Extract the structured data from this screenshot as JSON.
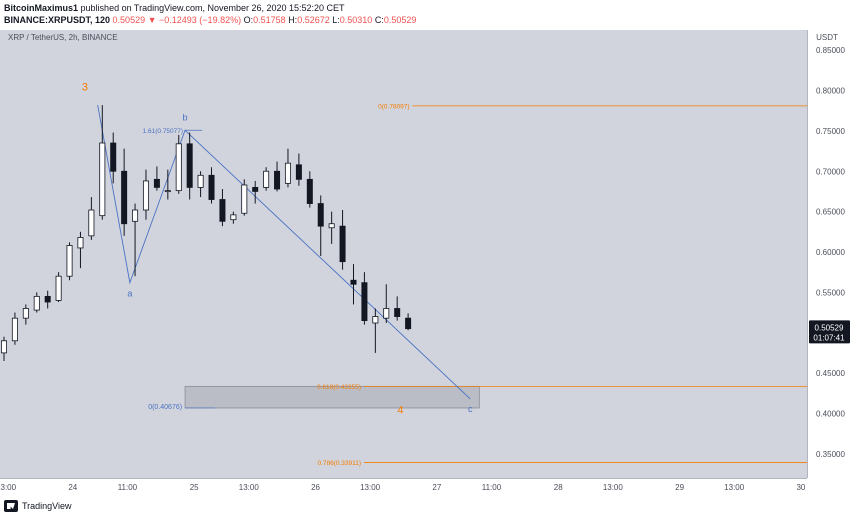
{
  "header": {
    "publisher": "BitcoinMaximus1",
    "published_text": "published on TradingView.com, November 26, 2020 15:52:20 CET",
    "symbol": "BINANCE:XRPUSDT, 120",
    "last": "0.50529",
    "change": "▼ −0.12493 (−19.82%)",
    "o_label": "O:",
    "o": "0.51758",
    "h_label": "H:",
    "h": "0.52672",
    "l_label": "L:",
    "l": "0.50310",
    "c_label": "C:",
    "c": "0.50529"
  },
  "chart_title": "XRP / TetherUS, 2h, BINANCE",
  "footer": {
    "logo_text": "TradingView"
  },
  "colors": {
    "plot_bg": "#d1d4dc",
    "axis_bg": "#ffffff",
    "up_body": "#ffffff",
    "down_body": "#131722",
    "fib": "#f57c00",
    "wave_blue": "#4a72c4",
    "wave_orange": "#f57c00",
    "box_fill": "#b2b5be",
    "price_tag_bg": "#131722"
  },
  "chart_data": {
    "type": "candlestick",
    "y_axis_label": "USDT",
    "ylim": [
      0.32,
      0.875
    ],
    "y_ticks": [
      "0.85000",
      "0.80000",
      "0.75000",
      "0.70000",
      "0.65000",
      "0.60000",
      "0.55000",
      "0.50000",
      "0.45000",
      "0.40000",
      "0.35000"
    ],
    "x_range": [
      0,
      133
    ],
    "x_ticks": [
      {
        "label": "13:00",
        "x": 1
      },
      {
        "label": "24",
        "x": 12
      },
      {
        "label": "11:00",
        "x": 21
      },
      {
        "label": "25",
        "x": 32
      },
      {
        "label": "13:00",
        "x": 41
      },
      {
        "label": "26",
        "x": 52
      },
      {
        "label": "13:00",
        "x": 61
      },
      {
        "label": "27",
        "x": 72
      },
      {
        "label": "11:00",
        "x": 81
      },
      {
        "label": "28",
        "x": 92
      },
      {
        "label": "13:00",
        "x": 101
      },
      {
        "label": "29",
        "x": 112
      },
      {
        "label": "13:00",
        "x": 121
      },
      {
        "label": "30",
        "x": 132
      }
    ],
    "candles": [
      {
        "x": 0,
        "o": 0.475,
        "h": 0.495,
        "l": 0.465,
        "c": 0.49
      },
      {
        "x": 1.8,
        "o": 0.49,
        "h": 0.525,
        "l": 0.485,
        "c": 0.518
      },
      {
        "x": 3.6,
        "o": 0.518,
        "h": 0.535,
        "l": 0.51,
        "c": 0.53
      },
      {
        "x": 5.4,
        "o": 0.528,
        "h": 0.55,
        "l": 0.525,
        "c": 0.545
      },
      {
        "x": 7.2,
        "o": 0.545,
        "h": 0.552,
        "l": 0.53,
        "c": 0.538
      },
      {
        "x": 9.0,
        "o": 0.54,
        "h": 0.575,
        "l": 0.538,
        "c": 0.57
      },
      {
        "x": 10.8,
        "o": 0.57,
        "h": 0.612,
        "l": 0.565,
        "c": 0.608
      },
      {
        "x": 12.6,
        "o": 0.605,
        "h": 0.625,
        "l": 0.58,
        "c": 0.618
      },
      {
        "x": 14.4,
        "o": 0.62,
        "h": 0.668,
        "l": 0.615,
        "c": 0.652
      },
      {
        "x": 16.2,
        "o": 0.645,
        "h": 0.782,
        "l": 0.64,
        "c": 0.735
      },
      {
        "x": 18.0,
        "o": 0.735,
        "h": 0.748,
        "l": 0.685,
        "c": 0.7
      },
      {
        "x": 19.8,
        "o": 0.7,
        "h": 0.728,
        "l": 0.62,
        "c": 0.635
      },
      {
        "x": 21.6,
        "o": 0.638,
        "h": 0.66,
        "l": 0.57,
        "c": 0.652
      },
      {
        "x": 23.4,
        "o": 0.652,
        "h": 0.702,
        "l": 0.64,
        "c": 0.688
      },
      {
        "x": 25.2,
        "o": 0.69,
        "h": 0.706,
        "l": 0.676,
        "c": 0.68
      },
      {
        "x": 27.0,
        "o": 0.675,
        "h": 0.702,
        "l": 0.665,
        "c": 0.676
      },
      {
        "x": 28.8,
        "o": 0.676,
        "h": 0.745,
        "l": 0.672,
        "c": 0.734
      },
      {
        "x": 30.6,
        "o": 0.734,
        "h": 0.748,
        "l": 0.665,
        "c": 0.68
      },
      {
        "x": 32.4,
        "o": 0.68,
        "h": 0.7,
        "l": 0.668,
        "c": 0.695
      },
      {
        "x": 34.2,
        "o": 0.695,
        "h": 0.705,
        "l": 0.66,
        "c": 0.665
      },
      {
        "x": 36.0,
        "o": 0.665,
        "h": 0.678,
        "l": 0.632,
        "c": 0.638
      },
      {
        "x": 37.8,
        "o": 0.64,
        "h": 0.65,
        "l": 0.635,
        "c": 0.646
      },
      {
        "x": 39.6,
        "o": 0.648,
        "h": 0.69,
        "l": 0.645,
        "c": 0.683
      },
      {
        "x": 41.4,
        "o": 0.68,
        "h": 0.688,
        "l": 0.66,
        "c": 0.675
      },
      {
        "x": 43.2,
        "o": 0.68,
        "h": 0.705,
        "l": 0.676,
        "c": 0.7
      },
      {
        "x": 45.0,
        "o": 0.7,
        "h": 0.712,
        "l": 0.675,
        "c": 0.678
      },
      {
        "x": 46.8,
        "o": 0.685,
        "h": 0.728,
        "l": 0.68,
        "c": 0.71
      },
      {
        "x": 48.6,
        "o": 0.708,
        "h": 0.722,
        "l": 0.682,
        "c": 0.69
      },
      {
        "x": 50.4,
        "o": 0.69,
        "h": 0.7,
        "l": 0.655,
        "c": 0.66
      },
      {
        "x": 52.2,
        "o": 0.66,
        "h": 0.67,
        "l": 0.595,
        "c": 0.632
      },
      {
        "x": 54.0,
        "o": 0.63,
        "h": 0.65,
        "l": 0.61,
        "c": 0.635
      },
      {
        "x": 55.8,
        "o": 0.632,
        "h": 0.652,
        "l": 0.578,
        "c": 0.588
      },
      {
        "x": 57.6,
        "o": 0.565,
        "h": 0.585,
        "l": 0.535,
        "c": 0.56
      },
      {
        "x": 59.4,
        "o": 0.562,
        "h": 0.575,
        "l": 0.51,
        "c": 0.515
      },
      {
        "x": 61.2,
        "o": 0.512,
        "h": 0.53,
        "l": 0.475,
        "c": 0.52
      },
      {
        "x": 63.0,
        "o": 0.518,
        "h": 0.56,
        "l": 0.512,
        "c": 0.53
      },
      {
        "x": 64.8,
        "o": 0.53,
        "h": 0.545,
        "l": 0.515,
        "c": 0.52
      },
      {
        "x": 66.6,
        "o": 0.518,
        "h": 0.524,
        "l": 0.503,
        "c": 0.505
      }
    ],
    "fib_levels": [
      {
        "label": "0(0.78097)",
        "value": 0.78097,
        "x_start": 68
      },
      {
        "label": "0.618(0.43355)",
        "value": 0.43355,
        "x_start": 60
      },
      {
        "label": "0.786(0.33911)",
        "value": 0.33911,
        "x_start": 60
      }
    ],
    "target_box": {
      "label": "0(0.40676)",
      "x1": 30.5,
      "x2": 79,
      "y1": 0.40676,
      "y2": 0.43355
    },
    "wave_path": [
      {
        "x": 16.1,
        "y": 0.782
      },
      {
        "x": 21.4,
        "y": 0.562
      },
      {
        "x": 30.5,
        "y": 0.75077
      },
      {
        "x": 77.5,
        "y": 0.418
      }
    ],
    "b_level": {
      "label": "1.61(0.75077)",
      "value": 0.75077,
      "x1": 30.5,
      "x2": 33
    },
    "wave_labels": [
      {
        "text": "3",
        "x": 14,
        "y": 0.8,
        "color": "orange",
        "size": 11
      },
      {
        "text": "a",
        "x": 21.4,
        "y": 0.545,
        "color": "blue",
        "size": 9
      },
      {
        "text": "b",
        "x": 30.5,
        "y": 0.763,
        "color": "blue",
        "size": 9
      },
      {
        "text": "c",
        "x": 77.5,
        "y": 0.402,
        "color": "blue",
        "size": 9
      },
      {
        "text": "4",
        "x": 66,
        "y": 0.4,
        "color": "orange",
        "size": 11
      }
    ],
    "price_tag": {
      "value": 0.50529,
      "price": "0.50529",
      "countdown": "01:07:41"
    }
  }
}
